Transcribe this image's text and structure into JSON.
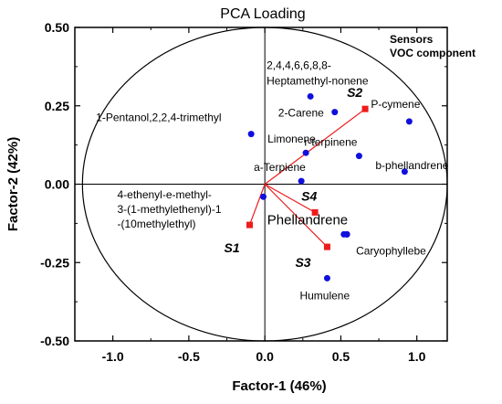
{
  "chart_data": {
    "type": "scatter",
    "title": "PCA Loading",
    "xlabel": "Factor-1 (46%)",
    "ylabel": "Factor-2 (42%)",
    "xlim": [
      -1.25,
      1.2
    ],
    "ylim": [
      -0.5,
      0.5
    ],
    "xticks": [
      "-1.0",
      "-0.5",
      "0.0",
      "0.5",
      "1.0"
    ],
    "xtick_values": [
      -1.0,
      -0.5,
      0.0,
      0.5,
      1.0
    ],
    "yticks": [
      "0.50",
      "0.25",
      "0.00",
      "-0.25",
      "-0.50"
    ],
    "ytick_values": [
      0.5,
      0.25,
      0.0,
      -0.25,
      -0.5
    ],
    "legend": [
      "Sensors",
      "VOC component"
    ],
    "legend_placement": "top-right",
    "grid": false,
    "series": [
      {
        "name": "Sensors",
        "color": "#ee1c1c",
        "marker": "square",
        "points": [
          {
            "label": "S1",
            "x": -0.1,
            "y": -0.13
          },
          {
            "label": "S2",
            "x": 0.66,
            "y": 0.24
          },
          {
            "label": "S3",
            "x": 0.41,
            "y": -0.2
          },
          {
            "label": "S4",
            "x": 0.33,
            "y": -0.09
          }
        ]
      },
      {
        "name": "VOC component",
        "color": "#1010dd",
        "marker": "circle",
        "points": [
          {
            "label": "1-Pentanol,2,2,4-trimethyl",
            "x": -0.09,
            "y": 0.16
          },
          {
            "label": "2,4,4,6,6,8,8-\nHeptamethyl-nonene",
            "x": 0.3,
            "y": 0.28
          },
          {
            "label": "2-Carene",
            "x": 0.46,
            "y": 0.23
          },
          {
            "label": "P-cymene",
            "x": 0.95,
            "y": 0.2
          },
          {
            "label": "Limonene",
            "x": 0.27,
            "y": 0.1
          },
          {
            "label": "r-terpinene",
            "x": 0.62,
            "y": 0.09
          },
          {
            "label": "b-phellandrene",
            "x": 0.92,
            "y": 0.04
          },
          {
            "label": "a-Terpiene",
            "x": 0.24,
            "y": 0.01
          },
          {
            "label": "4-ethenyl-e-methyl-\n3-(1-methylethenyl)-1\n-(10methylethyl)",
            "x": -0.01,
            "y": -0.04
          },
          {
            "label": "Phellandrene",
            "x": 0.52,
            "y": -0.16
          },
          {
            "label": "",
            "x": 0.54,
            "y": -0.16
          },
          {
            "label": "Caryophyllebe",
            "x": 0.54,
            "y": -0.16
          },
          {
            "label": "Humulene",
            "x": 0.41,
            "y": -0.3
          }
        ]
      }
    ],
    "ellipse": {
      "cx": 0.0,
      "cy": 0.0,
      "rx": 1.2,
      "ry": 0.5
    }
  }
}
